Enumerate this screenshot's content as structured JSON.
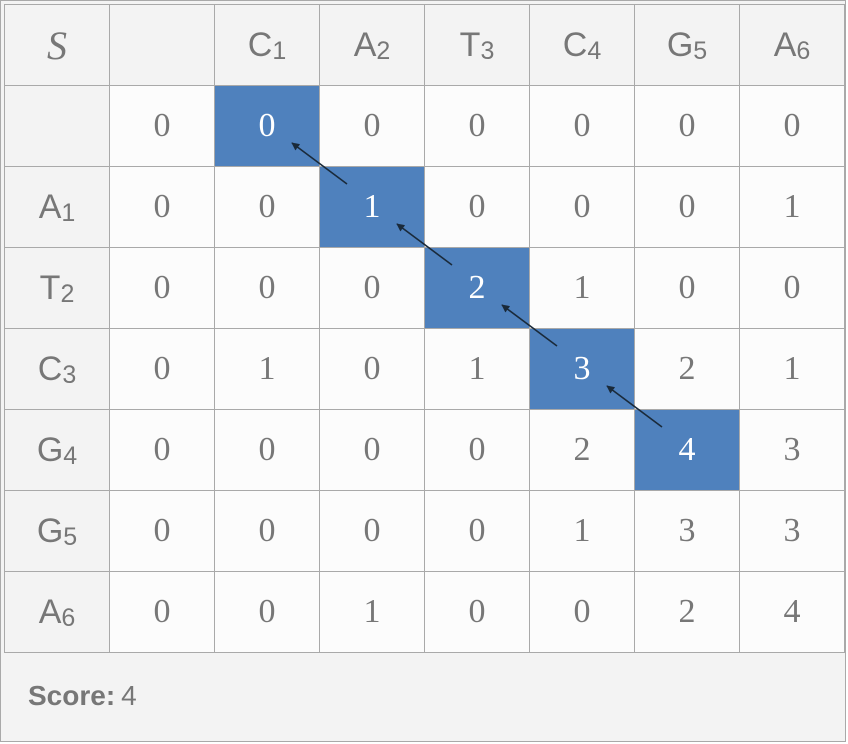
{
  "corner_label": "S",
  "columns": [
    {
      "letter": "",
      "index": ""
    },
    {
      "letter": "C",
      "index": "1"
    },
    {
      "letter": "A",
      "index": "2"
    },
    {
      "letter": "T",
      "index": "3"
    },
    {
      "letter": "C",
      "index": "4"
    },
    {
      "letter": "G",
      "index": "5"
    },
    {
      "letter": "A",
      "index": "6"
    }
  ],
  "rows": [
    {
      "letter": "",
      "index": "",
      "values": [
        "0",
        "0",
        "0",
        "0",
        "0",
        "0",
        "0"
      ]
    },
    {
      "letter": "A",
      "index": "1",
      "values": [
        "0",
        "0",
        "1",
        "0",
        "0",
        "0",
        "1"
      ]
    },
    {
      "letter": "T",
      "index": "2",
      "values": [
        "0",
        "0",
        "0",
        "2",
        "1",
        "0",
        "0"
      ]
    },
    {
      "letter": "C",
      "index": "3",
      "values": [
        "0",
        "1",
        "0",
        "1",
        "3",
        "2",
        "1"
      ]
    },
    {
      "letter": "G",
      "index": "4",
      "values": [
        "0",
        "0",
        "0",
        "0",
        "2",
        "4",
        "3"
      ]
    },
    {
      "letter": "G",
      "index": "5",
      "values": [
        "0",
        "0",
        "0",
        "0",
        "1",
        "3",
        "3"
      ]
    },
    {
      "letter": "A",
      "index": "6",
      "values": [
        "0",
        "0",
        "1",
        "0",
        "0",
        "2",
        "4"
      ]
    }
  ],
  "highlight_path": [
    [
      0,
      1
    ],
    [
      1,
      2
    ],
    [
      2,
      3
    ],
    [
      3,
      4
    ],
    [
      4,
      5
    ]
  ],
  "colors": {
    "highlight": "#4f81bd",
    "text": "#777777",
    "grid": "#a9a9a9",
    "header_bg": "#f3f3f3"
  },
  "footer": {
    "label": "Score:",
    "value": "4"
  }
}
